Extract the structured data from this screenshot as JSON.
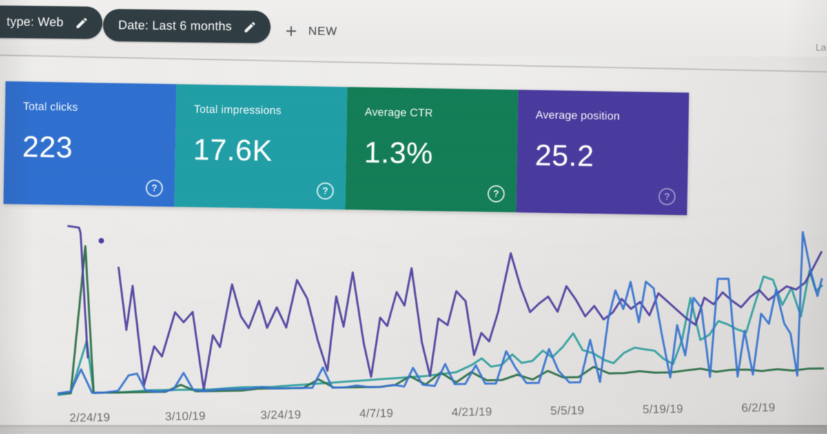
{
  "toolbar": {
    "chips": [
      {
        "label": "type: Web"
      },
      {
        "label": "Date: Last 6 months"
      }
    ],
    "new_button_label": "NEW",
    "top_right_partial_text": "La"
  },
  "icons": {
    "help": "?",
    "edit": "pencil",
    "plus": "plus"
  },
  "metric_cards": [
    {
      "label": "Total clicks",
      "value": "223",
      "color": "#2a70d8"
    },
    {
      "label": "Total impressions",
      "value": "17.6K",
      "color": "#17a0a9"
    },
    {
      "label": "Average CTR",
      "value": "1.3%",
      "color": "#0c7f55"
    },
    {
      "label": "Average position",
      "value": "25.2",
      "color": "#4939a5"
    }
  ],
  "chart_data": {
    "type": "line",
    "title": "",
    "x_axis": {
      "tick_labels": [
        "2/24/19",
        "3/10/19",
        "3/24/19",
        "4/7/19",
        "4/21/19",
        "5/5/19",
        "5/19/19",
        "6/2/19"
      ]
    },
    "y_axis": {
      "visible": false,
      "note": "no y-axis scale shown in screenshot; point values are relative height 0-100"
    },
    "legend": {
      "visible": false,
      "note": "series colors match the four summary cards"
    },
    "summary": {
      "total_clicks": "223",
      "total_impressions": "17.6K",
      "average_ctr": "1.3%",
      "average_position": "25.2"
    },
    "series": [
      {
        "name": "Impressions",
        "color": "#28a0a2",
        "segments": [
          [
            [
              0,
              0
            ],
            [
              1.6,
              1
            ],
            [
              3.8,
              32
            ],
            [
              4.6,
              1
            ],
            [
              8,
              1
            ],
            [
              12,
              2
            ],
            [
              16,
              2
            ],
            [
              20,
              2
            ],
            [
              24,
              3
            ],
            [
              28,
              3
            ],
            [
              32,
              4
            ],
            [
              36,
              5
            ],
            [
              40,
              6
            ],
            [
              44,
              7
            ],
            [
              48,
              8
            ],
            [
              50,
              9
            ],
            [
              52,
              10
            ],
            [
              54,
              14
            ],
            [
              55.4,
              18
            ],
            [
              56.6,
              13
            ],
            [
              58,
              14
            ],
            [
              59.4,
              20
            ],
            [
              60.6,
              15
            ],
            [
              62,
              16
            ],
            [
              63.4,
              22
            ],
            [
              64.6,
              18
            ],
            [
              66,
              24
            ],
            [
              67.4,
              32
            ],
            [
              68.6,
              22
            ],
            [
              70,
              20
            ],
            [
              71.4,
              16
            ],
            [
              72.6,
              14
            ],
            [
              74,
              20
            ],
            [
              75.4,
              23
            ],
            [
              76.6,
              22
            ],
            [
              78,
              21
            ],
            [
              79.2,
              16
            ],
            [
              80.4,
              13
            ],
            [
              81.6,
              27
            ],
            [
              82.8,
              52
            ],
            [
              84,
              27
            ],
            [
              85.2,
              30
            ],
            [
              86.4,
              38
            ],
            [
              87.6,
              36
            ],
            [
              88.8,
              33
            ],
            [
              90,
              31
            ],
            [
              91.2,
              48
            ],
            [
              92.4,
              64
            ],
            [
              93.6,
              62
            ],
            [
              94.8,
              47
            ],
            [
              96,
              57
            ],
            [
              97.2,
              40
            ],
            [
              98.4,
              67
            ],
            [
              99.2,
              55
            ],
            [
              100,
              58
            ]
          ]
        ]
      },
      {
        "name": "CTR",
        "color": "#256f44",
        "segments": [
          [
            [
              0,
              1
            ],
            [
              1.6,
              1
            ],
            [
              3.8,
              88
            ],
            [
              4.6,
              1
            ],
            [
              6,
              1
            ],
            [
              8,
              1
            ],
            [
              10,
              1
            ],
            [
              12,
              1
            ],
            [
              14,
              1
            ],
            [
              16,
              5
            ],
            [
              18,
              1
            ],
            [
              20,
              1
            ],
            [
              22,
              1
            ],
            [
              24,
              1
            ],
            [
              26,
              2
            ],
            [
              28,
              2
            ],
            [
              30,
              2
            ],
            [
              32,
              2
            ],
            [
              34,
              7
            ],
            [
              36,
              2
            ],
            [
              38,
              2
            ],
            [
              40,
              2
            ],
            [
              42,
              2
            ],
            [
              44,
              3
            ],
            [
              46,
              8
            ],
            [
              48,
              3
            ],
            [
              50,
              10
            ],
            [
              52,
              4
            ],
            [
              54,
              10
            ],
            [
              56,
              5
            ],
            [
              58,
              5
            ],
            [
              60,
              8
            ],
            [
              62,
              5
            ],
            [
              64,
              10
            ],
            [
              66,
              6
            ],
            [
              68,
              6
            ],
            [
              70,
              12
            ],
            [
              72,
              8
            ],
            [
              74,
              8
            ],
            [
              76,
              9
            ],
            [
              78,
              8
            ],
            [
              80,
              8
            ],
            [
              82,
              9
            ],
            [
              84,
              10
            ],
            [
              86,
              8
            ],
            [
              88,
              9
            ],
            [
              90,
              9
            ],
            [
              92,
              8
            ],
            [
              94,
              9
            ],
            [
              96,
              8
            ],
            [
              98,
              9
            ],
            [
              100,
              9
            ]
          ]
        ]
      },
      {
        "name": "Position",
        "color": "#4c3da6",
        "segments": [
          [
            [
              1.6,
              100
            ],
            [
              3.0,
              99
            ],
            [
              3.2,
              96
            ],
            [
              3.9,
              22
            ]
          ],
          [
            [
              8.1,
              75
            ],
            [
              9.0,
              38
            ],
            [
              9.9,
              64
            ],
            [
              11.2,
              5
            ],
            [
              12.6,
              28
            ],
            [
              13.6,
              22
            ],
            [
              15.4,
              48
            ],
            [
              16.5,
              42
            ],
            [
              17.7,
              48
            ],
            [
              19.0,
              2
            ],
            [
              20.3,
              34
            ],
            [
              21.2,
              27
            ],
            [
              22.9,
              64
            ],
            [
              24.0,
              45
            ],
            [
              25.0,
              38
            ],
            [
              26.4,
              54
            ],
            [
              27.4,
              38
            ],
            [
              28.7,
              50
            ],
            [
              29.9,
              38
            ],
            [
              31.4,
              66
            ],
            [
              32.7,
              55
            ],
            [
              34.0,
              30
            ],
            [
              35.2,
              12
            ],
            [
              36.5,
              56
            ],
            [
              37.4,
              38
            ],
            [
              38.7,
              70
            ],
            [
              40.0,
              28
            ],
            [
              40.9,
              8
            ],
            [
              42.2,
              43
            ],
            [
              43.1,
              38
            ],
            [
              44.4,
              58
            ],
            [
              45.4,
              50
            ],
            [
              46.4,
              72
            ],
            [
              47.6,
              28
            ],
            [
              48.6,
              8
            ],
            [
              49.8,
              42
            ],
            [
              51.0,
              38
            ],
            [
              52.2,
              58
            ],
            [
              53.4,
              52
            ],
            [
              54.4,
              20
            ],
            [
              55.4,
              33
            ],
            [
              56.4,
              28
            ],
            [
              57.6,
              45
            ],
            [
              59.4,
              80
            ],
            [
              60.6,
              60
            ],
            [
              61.8,
              45
            ],
            [
              63.0,
              50
            ],
            [
              64.2,
              54
            ],
            [
              65.4,
              45
            ],
            [
              66.6,
              60
            ],
            [
              67.8,
              52
            ],
            [
              69.0,
              42
            ],
            [
              70.2,
              48
            ],
            [
              71.4,
              40
            ],
            [
              72.6,
              44
            ],
            [
              73.8,
              52
            ],
            [
              75.0,
              46
            ],
            [
              76.2,
              50
            ],
            [
              77.4,
              42
            ],
            [
              78.6,
              55
            ],
            [
              79.8,
              50
            ],
            [
              81.0,
              45
            ],
            [
              82.2,
              40
            ],
            [
              83.4,
              36
            ],
            [
              84.6,
              52
            ],
            [
              85.8,
              48
            ],
            [
              87.0,
              55
            ],
            [
              88.2,
              50
            ],
            [
              89.4,
              46
            ],
            [
              90.6,
              52
            ],
            [
              91.8,
              56
            ],
            [
              93.0,
              50
            ],
            [
              94.2,
              54
            ],
            [
              95.4,
              58
            ],
            [
              96.6,
              56
            ],
            [
              97.8,
              60
            ],
            [
              98.8,
              68
            ],
            [
              100,
              78
            ]
          ]
        ],
        "isolated_points": [
          [
            5.9,
            91
          ]
        ]
      },
      {
        "name": "Clicks",
        "color": "#3173d8",
        "segments": [
          [
            [
              0,
              1
            ],
            [
              1.6,
              2
            ],
            [
              3.0,
              15
            ],
            [
              4.4,
              1
            ],
            [
              6.0,
              1
            ],
            [
              7.8,
              2
            ],
            [
              9.2,
              11
            ],
            [
              10.3,
              12
            ],
            [
              11.4,
              2
            ],
            [
              13.0,
              1
            ],
            [
              15.0,
              2
            ],
            [
              16.4,
              12
            ],
            [
              17.6,
              2
            ],
            [
              19.0,
              1
            ],
            [
              21.0,
              2
            ],
            [
              23.0,
              2
            ],
            [
              25.0,
              2
            ],
            [
              26.6,
              3
            ],
            [
              28.0,
              2
            ],
            [
              30.0,
              2
            ],
            [
              31.6,
              2
            ],
            [
              33.2,
              2
            ],
            [
              34.6,
              14
            ],
            [
              35.8,
              2
            ],
            [
              37.4,
              2
            ],
            [
              39.0,
              3
            ],
            [
              40.6,
              2
            ],
            [
              42.2,
              2
            ],
            [
              43.8,
              3
            ],
            [
              45.2,
              2
            ],
            [
              46.4,
              13
            ],
            [
              47.6,
              3
            ],
            [
              49.2,
              2
            ],
            [
              50.6,
              15
            ],
            [
              51.8,
              3
            ],
            [
              53.2,
              3
            ],
            [
              54.6,
              14
            ],
            [
              55.8,
              3
            ],
            [
              57.2,
              3
            ],
            [
              58.6,
              22
            ],
            [
              59.8,
              12
            ],
            [
              61.2,
              3
            ],
            [
              62.8,
              3
            ],
            [
              64.2,
              23
            ],
            [
              65.4,
              10
            ],
            [
              66.8,
              3
            ],
            [
              68.2,
              3
            ],
            [
              69.6,
              28
            ],
            [
              70.8,
              3
            ],
            [
              72.0,
              40
            ],
            [
              73.0,
              57
            ],
            [
              74.0,
              46
            ],
            [
              75.0,
              62
            ],
            [
              76.0,
              38
            ],
            [
              77.0,
              62
            ],
            [
              78.0,
              58
            ],
            [
              79.0,
              30
            ],
            [
              80.0,
              5
            ],
            [
              81.0,
              36
            ],
            [
              82.0,
              18
            ],
            [
              83.2,
              52
            ],
            [
              84.2,
              46
            ],
            [
              85.2,
              5
            ],
            [
              86.4,
              63
            ],
            [
              87.8,
              63
            ],
            [
              88.8,
              5
            ],
            [
              89.8,
              32
            ],
            [
              90.8,
              6
            ],
            [
              92.0,
              42
            ],
            [
              93.0,
              36
            ],
            [
              94.0,
              56
            ],
            [
              95.0,
              36
            ],
            [
              95.8,
              30
            ],
            [
              96.6,
              5
            ],
            [
              97.6,
              90
            ],
            [
              98.6,
              66
            ],
            [
              99.4,
              52
            ],
            [
              100,
              62
            ]
          ]
        ]
      }
    ]
  }
}
